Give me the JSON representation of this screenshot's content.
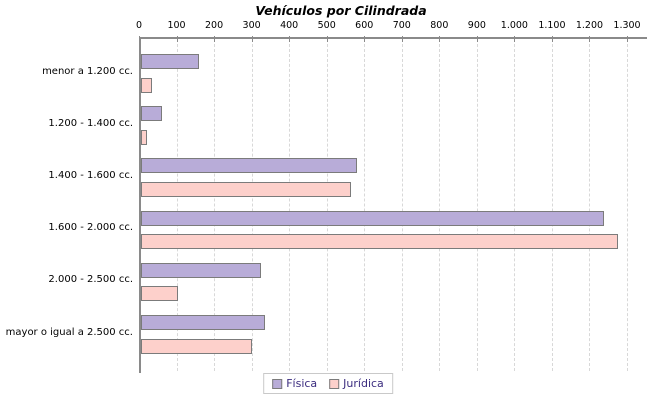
{
  "chart_data": {
    "type": "bar",
    "orientation": "horizontal",
    "title": "Vehículos por Cilindrada",
    "categories": [
      "menor a 1.200 cc.",
      "1.200 - 1.400 cc.",
      "1.400 - 1.600 cc.",
      "1.600 - 2.000 cc.",
      "2.000 - 2.500 cc.",
      "mayor o igual a 2.500 cc."
    ],
    "series": [
      {
        "name": "Física",
        "color": "#b8acd8",
        "values": [
          160,
          60,
          580,
          1240,
          325,
          335
        ]
      },
      {
        "name": "Jurídica",
        "color": "#fdd0cb",
        "values": [
          35,
          20,
          565,
          1275,
          105,
          300
        ]
      }
    ],
    "x_axis": {
      "position": "top",
      "min": 0,
      "max": 1300,
      "tick_interval": 100,
      "tick_labels": [
        "0",
        "100",
        "200",
        "300",
        "400",
        "500",
        "600",
        "700",
        "800",
        "900",
        "1.000",
        "1.100",
        "1.200",
        "1.300"
      ]
    },
    "grid": {
      "vertical": true,
      "style": "dashed",
      "color": "#d8d8d8"
    },
    "legend": {
      "position": "bottom-center",
      "text_color": "#3b2c7f"
    },
    "colors": {
      "background": "#ffffff",
      "axis": "#8a8a8a",
      "bar_border": "#7b7b7b",
      "title_text": "#000000"
    }
  }
}
